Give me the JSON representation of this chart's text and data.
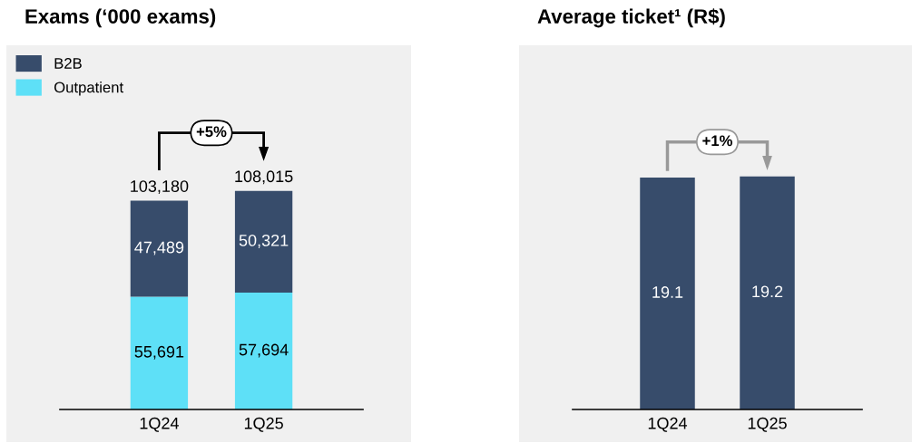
{
  "chart_data": [
    {
      "type": "bar",
      "title": "Exams (‘000 exams)",
      "categories": [
        "1Q24",
        "1Q25"
      ],
      "stacked": true,
      "series": [
        {
          "name": "Outpatient",
          "color": "#5ee0f7",
          "values": [
            55691,
            57694
          ],
          "value_labels": [
            "55,691",
            "57,694"
          ]
        },
        {
          "name": "B2B",
          "color": "#374c6b",
          "values": [
            47489,
            50321
          ],
          "value_labels": [
            "47,489",
            "50,321"
          ]
        }
      ],
      "totals": [
        "103,180",
        "108,015"
      ],
      "tick_labels": "x",
      "grid": false,
      "legend": "top left",
      "annotations": [
        "+5%"
      ]
    },
    {
      "type": "bar",
      "title": "Average ticket¹ (R$)",
      "categories": [
        "1Q24",
        "1Q25"
      ],
      "series": [
        {
          "color": "#374c6b",
          "values": [
            19.1,
            19.2
          ]
        }
      ],
      "data_labels": true,
      "tick_labels": "x",
      "grid": false,
      "legend": false,
      "annotations": [
        "+1%"
      ]
    }
  ]
}
